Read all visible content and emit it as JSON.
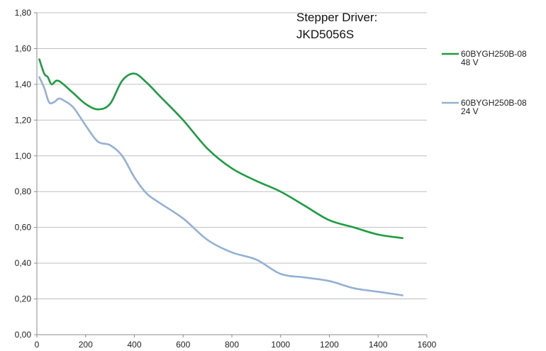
{
  "chart_data": {
    "type": "line",
    "annotation": [
      "Stepper Driver:",
      "JKD5056S"
    ],
    "xlim": [
      0,
      1600
    ],
    "ylim": [
      0,
      1.8
    ],
    "x_ticks": [
      0,
      200,
      400,
      600,
      800,
      1000,
      1200,
      1400,
      1600
    ],
    "x_tick_labels": [
      "0",
      "200",
      "400",
      "600",
      "800",
      "1000",
      "1200",
      "1400",
      "1600"
    ],
    "y_ticks": [
      0,
      0.2,
      0.4,
      0.6,
      0.8,
      1.0,
      1.2,
      1.4,
      1.6,
      1.8
    ],
    "y_tick_labels": [
      "0,00",
      "0,20",
      "0,40",
      "0,60",
      "0,80",
      "1,00",
      "1,20",
      "1,40",
      "1,60",
      "1,80"
    ],
    "grid": "horizontal",
    "legend_position": "right",
    "series": [
      {
        "legend_lines": [
          "60BYGH250B-08",
          "48 V"
        ],
        "color": "#1a9e3f",
        "x": [
          10,
          30,
          45,
          60,
          80,
          100,
          150,
          200,
          250,
          300,
          350,
          400,
          450,
          500,
          600,
          700,
          800,
          900,
          1000,
          1100,
          1200,
          1300,
          1400,
          1500
        ],
        "y": [
          1.54,
          1.46,
          1.44,
          1.4,
          1.42,
          1.41,
          1.35,
          1.29,
          1.26,
          1.29,
          1.42,
          1.46,
          1.41,
          1.34,
          1.2,
          1.04,
          0.93,
          0.86,
          0.8,
          0.72,
          0.64,
          0.6,
          0.56,
          0.54
        ]
      },
      {
        "legend_lines": [
          "60BYGH250B-08",
          "24 V"
        ],
        "color": "#93b1d6",
        "x": [
          10,
          30,
          50,
          70,
          90,
          110,
          150,
          200,
          250,
          300,
          350,
          400,
          450,
          500,
          600,
          700,
          800,
          900,
          1000,
          1100,
          1200,
          1300,
          1400,
          1500
        ],
        "y": [
          1.44,
          1.38,
          1.3,
          1.3,
          1.32,
          1.31,
          1.27,
          1.17,
          1.08,
          1.06,
          1.0,
          0.88,
          0.79,
          0.74,
          0.65,
          0.53,
          0.46,
          0.42,
          0.34,
          0.32,
          0.3,
          0.26,
          0.24,
          0.22
        ]
      }
    ]
  }
}
